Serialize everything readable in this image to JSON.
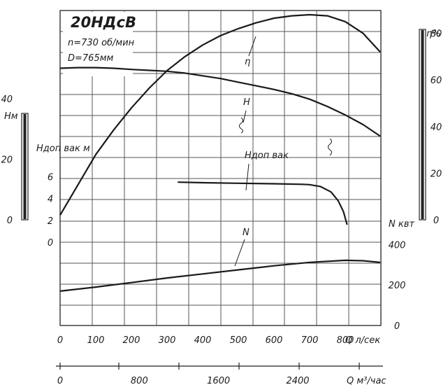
{
  "chart_data": {
    "type": "line",
    "title": "20НДсВ",
    "info_lines": [
      "n=730 об/мин",
      "D=765мм"
    ],
    "x_axis": {
      "label": "Q л/сек",
      "range": [
        0,
        900
      ],
      "ticks": [
        0,
        100,
        200,
        300,
        400,
        500,
        600,
        700,
        800
      ],
      "tick_labels": [
        "0",
        "100",
        "200",
        "300",
        "400",
        "500",
        "600",
        "700",
        "800"
      ]
    },
    "x2_axis": {
      "label": "Q м³/час",
      "range": [
        0,
        3240
      ],
      "ticks": [
        0,
        800,
        1600,
        2400
      ],
      "tick_labels": [
        "0",
        "800",
        "1600",
        "2400"
      ]
    },
    "h_axis": {
      "label": "Нм",
      "range": [
        0,
        60
      ],
      "ticks": [
        0,
        20,
        40
      ],
      "tick_labels": [
        "0",
        "20",
        "40"
      ]
    },
    "hvak_axis": {
      "label": "Ндоп вак м",
      "range": [
        0,
        9
      ],
      "ticks": [
        0,
        2,
        4,
        6
      ],
      "tick_labels": [
        "0",
        "2",
        "4",
        "6"
      ]
    },
    "n_axis": {
      "label": "N квт",
      "range": [
        0,
        600
      ],
      "ticks": [
        0,
        200,
        400
      ],
      "tick_labels": [
        "0",
        "200",
        "400"
      ]
    },
    "eff_axis": {
      "label": "η%",
      "range": [
        0,
        90
      ],
      "ticks": [
        0,
        20,
        40,
        60,
        80
      ],
      "tick_labels": [
        "0",
        "20",
        "40",
        "60",
        "80"
      ]
    },
    "series": [
      {
        "name": "η",
        "axis": "eff_axis",
        "points": [
          [
            0,
            2
          ],
          [
            50,
            15
          ],
          [
            100,
            28
          ],
          [
            150,
            38.5
          ],
          [
            200,
            48
          ],
          [
            250,
            56.5
          ],
          [
            300,
            64
          ],
          [
            350,
            70
          ],
          [
            400,
            75
          ],
          [
            450,
            79
          ],
          [
            500,
            82
          ],
          [
            550,
            84.5
          ],
          [
            600,
            86.5
          ],
          [
            650,
            87.5
          ],
          [
            700,
            88
          ],
          [
            750,
            87.5
          ],
          [
            800,
            85
          ],
          [
            850,
            80
          ],
          [
            898,
            72
          ]
        ]
      },
      {
        "name": "H",
        "axis": "h_axis",
        "points": [
          [
            0,
            50
          ],
          [
            50,
            50.2
          ],
          [
            100,
            50.2
          ],
          [
            150,
            50
          ],
          [
            200,
            49.6
          ],
          [
            250,
            49.3
          ],
          [
            300,
            49
          ],
          [
            350,
            48.4
          ],
          [
            400,
            47.5
          ],
          [
            450,
            46.6
          ],
          [
            500,
            45.4
          ],
          [
            550,
            44.2
          ],
          [
            600,
            43
          ],
          [
            650,
            41.6
          ],
          [
            700,
            39.8
          ],
          [
            750,
            37.4
          ],
          [
            800,
            34.6
          ],
          [
            850,
            31.4
          ],
          [
            898,
            27.6
          ]
        ]
      },
      {
        "name": "Ндоп вак",
        "axis": "hvak_axis",
        "points": [
          [
            330,
            5.5
          ],
          [
            400,
            5.45
          ],
          [
            500,
            5.4
          ],
          [
            600,
            5.35
          ],
          [
            680,
            5.3
          ],
          [
            700,
            5.27
          ],
          [
            730,
            5.1
          ],
          [
            760,
            4.6
          ],
          [
            780,
            3.8
          ],
          [
            795,
            2.8
          ],
          [
            805,
            1.6
          ]
        ]
      },
      {
        "name": "N",
        "axis": "n_axis",
        "points": [
          [
            0,
            170
          ],
          [
            100,
            190
          ],
          [
            200,
            212
          ],
          [
            300,
            235
          ],
          [
            400,
            255
          ],
          [
            500,
            275
          ],
          [
            600,
            295
          ],
          [
            700,
            312
          ],
          [
            800,
            322
          ],
          [
            850,
            320
          ],
          [
            898,
            312
          ]
        ]
      }
    ],
    "curve_labels": [
      "η",
      "H",
      "Ндоп вак",
      "N"
    ],
    "grid": true,
    "legend": "none"
  }
}
